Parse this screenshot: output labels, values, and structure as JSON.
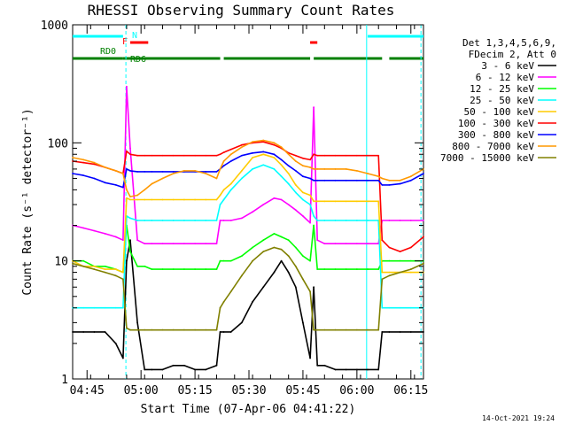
{
  "chart_data": {
    "type": "line",
    "title": "RHESSI Observing Summary Count Rates",
    "xlabel": "Start Time (07-Apr-06 04:41:22)",
    "ylabel": "Count Rate (s⁻¹ detector⁻¹)",
    "y_scale": "log",
    "ylim": [
      1,
      1000
    ],
    "xlim_minutes_after_0441": [
      0,
      97.5
    ],
    "x_ticks": [
      "04:45",
      "05:00",
      "05:15",
      "05:30",
      "05:45",
      "06:00",
      "06:15"
    ],
    "y_ticks": [
      "1",
      "10",
      "100",
      "1000"
    ],
    "legend_header": [
      "Det 1,3,4,5,6,9,",
      "FDecim 2, Att 0"
    ],
    "legend_placement": "right",
    "timestamp": "14-Oct-2021 19:24",
    "flags": [
      {
        "label": "N",
        "color": "#00ffff",
        "segments": [
          [
            0,
            14
          ],
          [
            82,
            97.5
          ]
        ]
      },
      {
        "label": "F",
        "color": "#ff0000",
        "segments": [
          [
            16,
            21
          ],
          [
            66,
            68
          ]
        ]
      },
      {
        "label": "RD0",
        "color": "#008000",
        "segments": [
          [
            0,
            14
          ]
        ]
      },
      {
        "label": "RD6",
        "color": "#008000",
        "segments": [
          [
            14,
            41
          ],
          [
            42,
            66
          ],
          [
            67,
            86
          ],
          [
            88,
            97.5
          ]
        ]
      }
    ],
    "vlines": [
      {
        "x": 14.8,
        "color": "#00ffff",
        "style": "dashed"
      },
      {
        "x": 81.7,
        "color": "#00ffff",
        "style": "solid"
      },
      {
        "x": 96.8,
        "color": "#00ffff",
        "style": "dashed"
      }
    ],
    "x": [
      0,
      3,
      6,
      9,
      12,
      14,
      15,
      16,
      18,
      20,
      22,
      25,
      28,
      31,
      34,
      37,
      40,
      41,
      42,
      44,
      47,
      50,
      53,
      56,
      58,
      60,
      62,
      64,
      66,
      67,
      68,
      70,
      73,
      76,
      79,
      82,
      85,
      86,
      88,
      91,
      94,
      97.5
    ],
    "series": [
      {
        "name": "3 - 6 keV",
        "color": "#000000",
        "values": [
          2.5,
          2.5,
          2.5,
          2.5,
          2.0,
          1.5,
          10,
          15,
          3,
          1.2,
          1.2,
          1.2,
          1.3,
          1.3,
          1.2,
          1.2,
          1.3,
          2.5,
          2.5,
          2.5,
          3,
          4.5,
          6,
          8,
          10,
          8,
          6,
          3,
          1.5,
          6,
          1.3,
          1.3,
          1.2,
          1.2,
          1.2,
          1.2,
          1.2,
          2.5,
          2.5,
          2.5,
          2.5,
          2.5
        ]
      },
      {
        "name": "6 - 12 keV",
        "color": "#ff00ff",
        "values": [
          20,
          19,
          18,
          17,
          16,
          15,
          300,
          90,
          15,
          14,
          14,
          14,
          14,
          14,
          14,
          14,
          14,
          22,
          22,
          22,
          23,
          26,
          30,
          34,
          33,
          30,
          27,
          24,
          21,
          200,
          15,
          14,
          14,
          14,
          14,
          14,
          14,
          22,
          22,
          22,
          22,
          22
        ]
      },
      {
        "name": "12 - 25 keV",
        "color": "#00ff00",
        "values": [
          10,
          10,
          9,
          9,
          8.5,
          8,
          20,
          12,
          9,
          9,
          8.5,
          8.5,
          8.5,
          8.5,
          8.5,
          8.5,
          8.5,
          10,
          10,
          10,
          11,
          13,
          15,
          17,
          16,
          15,
          13,
          11,
          10,
          20,
          8.5,
          8.5,
          8.5,
          8.5,
          8.5,
          8.5,
          8.5,
          10,
          10,
          10,
          10,
          10
        ]
      },
      {
        "name": "25 - 50 keV",
        "color": "#00ffff",
        "values": [
          4,
          4,
          4,
          4,
          4,
          4,
          24,
          23,
          22,
          22,
          22,
          22,
          22,
          22,
          22,
          22,
          22,
          30,
          33,
          40,
          50,
          60,
          65,
          60,
          52,
          45,
          38,
          33,
          30,
          24,
          22,
          22,
          22,
          22,
          22,
          22,
          22,
          4,
          4,
          4,
          4,
          4
        ]
      },
      {
        "name": "50 - 100 keV",
        "color": "#ffcc00",
        "values": [
          10,
          9,
          9,
          8.5,
          8.5,
          8,
          34,
          33,
          33,
          33,
          33,
          33,
          33,
          33,
          33,
          33,
          33,
          36,
          40,
          45,
          58,
          75,
          80,
          75,
          65,
          55,
          44,
          38,
          36,
          32,
          32,
          32,
          32,
          32,
          32,
          32,
          32,
          8,
          8,
          8,
          8,
          8
        ]
      },
      {
        "name": "100 - 300 keV",
        "color": "#ff0000",
        "values": [
          70,
          68,
          66,
          62,
          58,
          55,
          85,
          80,
          78,
          78,
          78,
          78,
          78,
          78,
          78,
          78,
          78,
          80,
          83,
          88,
          96,
          100,
          102,
          96,
          90,
          82,
          78,
          74,
          72,
          80,
          78,
          78,
          78,
          78,
          78,
          78,
          78,
          15,
          13,
          12,
          13,
          16
        ]
      },
      {
        "name": "300 - 800 keV",
        "color": "#0000ff",
        "values": [
          55,
          53,
          50,
          46,
          44,
          42,
          60,
          58,
          57,
          57,
          57,
          57,
          57,
          57,
          57,
          57,
          57,
          60,
          64,
          70,
          78,
          82,
          84,
          80,
          72,
          64,
          58,
          52,
          50,
          48,
          48,
          48,
          48,
          48,
          48,
          48,
          48,
          44,
          44,
          45,
          48,
          55
        ]
      },
      {
        "name": "800 - 7000 keV",
        "color": "#ff9900",
        "values": [
          75,
          72,
          68,
          62,
          58,
          55,
          40,
          35,
          36,
          40,
          45,
          50,
          55,
          58,
          58,
          55,
          50,
          60,
          70,
          80,
          92,
          102,
          105,
          100,
          92,
          80,
          70,
          64,
          62,
          60,
          60,
          60,
          60,
          60,
          58,
          55,
          52,
          50,
          48,
          48,
          52,
          60
        ]
      },
      {
        "name": "7000 - 15000 keV",
        "color": "#808000",
        "values": [
          9.5,
          9,
          8.5,
          8,
          7.5,
          7,
          2.7,
          2.6,
          2.6,
          2.6,
          2.6,
          2.6,
          2.6,
          2.6,
          2.6,
          2.6,
          2.6,
          4,
          4.5,
          5.5,
          7.5,
          10,
          12,
          13,
          12.5,
          11,
          9,
          7,
          5.5,
          2.6,
          2.6,
          2.6,
          2.6,
          2.6,
          2.6,
          2.6,
          2.6,
          7,
          7.5,
          8,
          8.5,
          9.5
        ]
      }
    ]
  }
}
